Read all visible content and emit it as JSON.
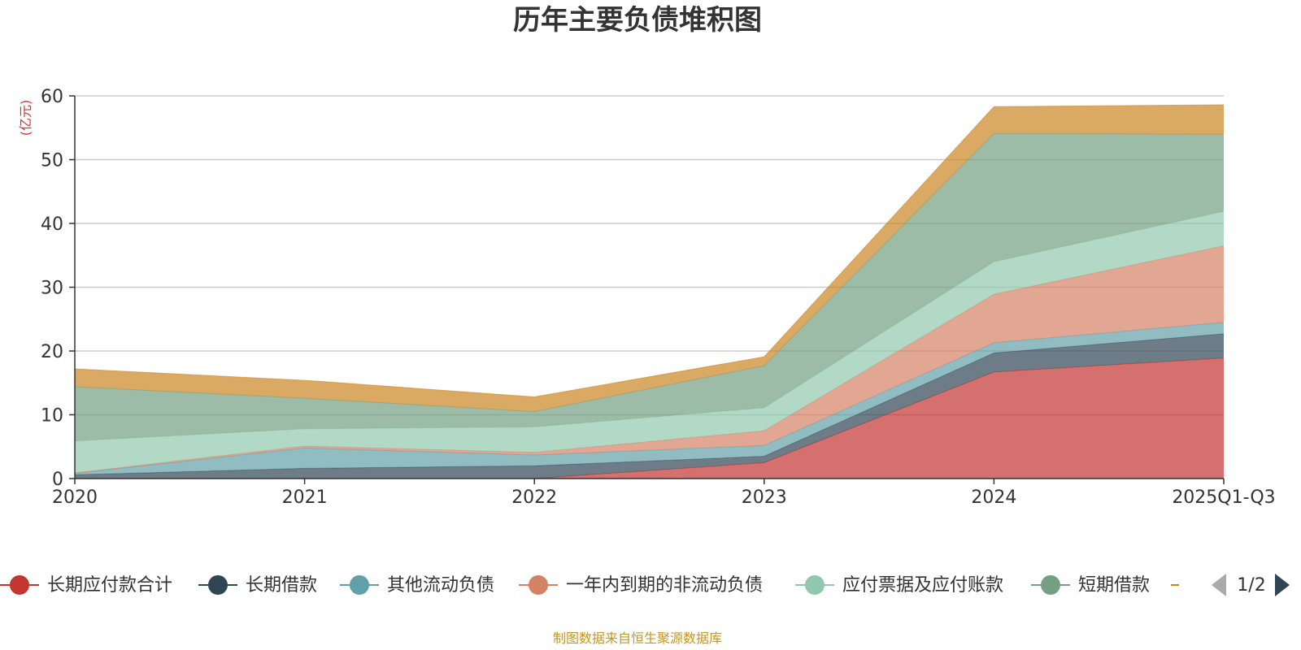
{
  "chart_data": {
    "type": "area",
    "stacked": true,
    "title": "历年主要负债堆积图",
    "unit_label": "(亿元)",
    "categories": [
      "2020",
      "2021",
      "2022",
      "2023",
      "2024",
      "2025Q1-Q3"
    ],
    "ylim": [
      0,
      60
    ],
    "y_ticks": [
      "0",
      "10",
      "20",
      "30",
      "40",
      "50",
      "60"
    ],
    "grid": true,
    "series": [
      {
        "name": "长期应付款合计",
        "color": "#c23531",
        "values": [
          0,
          0,
          0,
          2.5,
          16.7,
          18.9
        ]
      },
      {
        "name": "长期借款",
        "color": "#2f4554",
        "values": [
          0.6,
          1.6,
          2.0,
          1.0,
          3.0,
          3.8
        ]
      },
      {
        "name": "其他流动负债",
        "color": "#61a0a8",
        "values": [
          0.2,
          3.2,
          1.7,
          1.7,
          1.6,
          1.8
        ]
      },
      {
        "name": "一年内到期的非流动负债",
        "color": "#d48265",
        "values": [
          0.1,
          0.3,
          0.4,
          2.3,
          7.6,
          12.0
        ]
      },
      {
        "name": "应付票据及应付账款",
        "color": "#91c7ae",
        "values": [
          5.0,
          2.7,
          4.0,
          3.6,
          5.1,
          5.4
        ]
      },
      {
        "name": "短期借款",
        "color": "#749f83",
        "values": [
          8.5,
          4.8,
          2.4,
          6.6,
          20.1,
          12.1
        ]
      },
      {
        "name": "",
        "color": "#ca8622",
        "values": [
          2.8,
          2.8,
          2.3,
          1.4,
          4.2,
          4.6
        ]
      }
    ]
  },
  "legend": {
    "page_label": "1/2",
    "prev_icon": "triangle-left-icon",
    "next_icon": "triangle-right-icon"
  },
  "source_note": "制图数据来自恒生聚源数据库"
}
